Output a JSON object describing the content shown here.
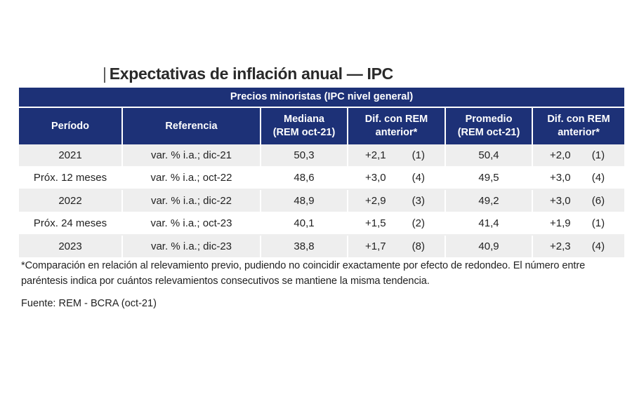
{
  "title": "Expectativas de inflación anual — IPC",
  "title_bar": "|",
  "group_header": "Precios minoristas (IPC nivel general)",
  "columns": {
    "periodo": "Período",
    "referencia": "Referencia",
    "mediana_1": "Mediana",
    "mediana_2": "(REM oct-21)",
    "dif1_1": "Dif. con REM",
    "dif1_2": "anterior*",
    "promedio_1": "Promedio",
    "promedio_2": "(REM oct-21)",
    "dif2_1": "Dif. con REM",
    "dif2_2": "anterior*"
  },
  "rows": [
    {
      "periodo": "2021",
      "referencia": "var. % i.a.; dic-21",
      "mediana": "50,3",
      "dif_med": "+2,1",
      "dif_med_n": "(1)",
      "promedio": "50,4",
      "dif_prom": "+2,0",
      "dif_prom_n": "(1)"
    },
    {
      "periodo": "Próx. 12 meses",
      "referencia": "var. % i.a.; oct-22",
      "mediana": "48,6",
      "dif_med": "+3,0",
      "dif_med_n": "(4)",
      "promedio": "49,5",
      "dif_prom": "+3,0",
      "dif_prom_n": "(4)"
    },
    {
      "periodo": "2022",
      "referencia": "var. % i.a.; dic-22",
      "mediana": "48,9",
      "dif_med": "+2,9",
      "dif_med_n": "(3)",
      "promedio": "49,2",
      "dif_prom": "+3,0",
      "dif_prom_n": "(6)"
    },
    {
      "periodo": "Próx. 24 meses",
      "referencia": "var. % i.a.; oct-23",
      "mediana": "40,1",
      "dif_med": "+1,5",
      "dif_med_n": "(2)",
      "promedio": "41,4",
      "dif_prom": "+1,9",
      "dif_prom_n": "(1)"
    },
    {
      "periodo": "2023",
      "referencia": "var. % i.a.; dic-23",
      "mediana": "38,8",
      "dif_med": "+1,7",
      "dif_med_n": "(8)",
      "promedio": "40,9",
      "dif_prom": "+2,3",
      "dif_prom_n": "(4)"
    }
  ],
  "note": "*Comparación en relación al relevamiento previo, pudiendo no coincidir exactamente por efecto de redondeo. El número entre paréntesis indica por cuántos relevamientos consecutivos se mantiene la misma tendencia.",
  "source": "Fuente: REM - BCRA (oct-21)",
  "colors": {
    "header_bg": "#1d3177",
    "row_alt_bg": "#eeeeee",
    "header_text": "#ffffff"
  }
}
